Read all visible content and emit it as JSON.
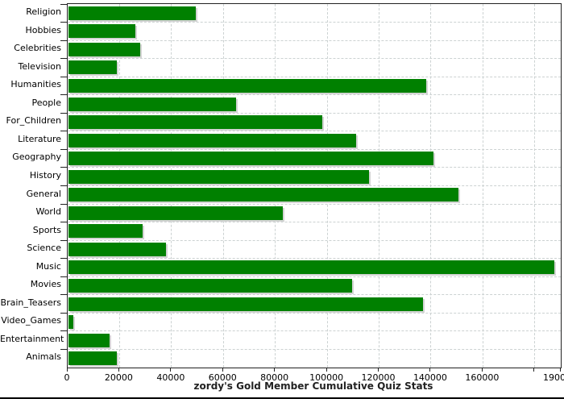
{
  "chart_data": {
    "type": "bar",
    "orientation": "horizontal",
    "title": "zordy's Gold Member Cumulative Quiz Stats",
    "categories": [
      "Religion",
      "Hobbies",
      "Celebrities",
      "Television",
      "Humanities",
      "People",
      "For_Children",
      "Literature",
      "Geography",
      "History",
      "General",
      "World",
      "Sports",
      "Science",
      "Music",
      "Movies",
      "Brain_Teasers",
      "Video_Games",
      "Entertainment",
      "Animals"
    ],
    "values": [
      49500,
      26000,
      28000,
      19000,
      138000,
      65000,
      98000,
      111000,
      141000,
      116000,
      150500,
      83000,
      29000,
      38000,
      187500,
      109500,
      137000,
      2200,
      16000,
      19000
    ],
    "xlabel": "",
    "ylabel": "",
    "xlim": [
      0,
      190000
    ],
    "x_ticks": [
      {
        "value": 0,
        "label": "0"
      },
      {
        "value": 20000,
        "label": "20000"
      },
      {
        "value": 40000,
        "label": "40000"
      },
      {
        "value": 60000,
        "label": "60000"
      },
      {
        "value": 80000,
        "label": "80000"
      },
      {
        "value": 100000,
        "label": "100000"
      },
      {
        "value": 120000,
        "label": "120000"
      },
      {
        "value": 140000,
        "label": "140000"
      },
      {
        "value": 160000,
        "label": "160000"
      },
      {
        "value": 180000,
        "label": ""
      },
      {
        "value": 190000,
        "label": "190000"
      }
    ],
    "grid": "dashed-vertical-and-horizontal",
    "legend": "none",
    "bar_color": "#008000",
    "bar_shadow_color": "#d4d4d4",
    "gridline_color": "#ccd2d2",
    "axis_color": "#222222"
  }
}
